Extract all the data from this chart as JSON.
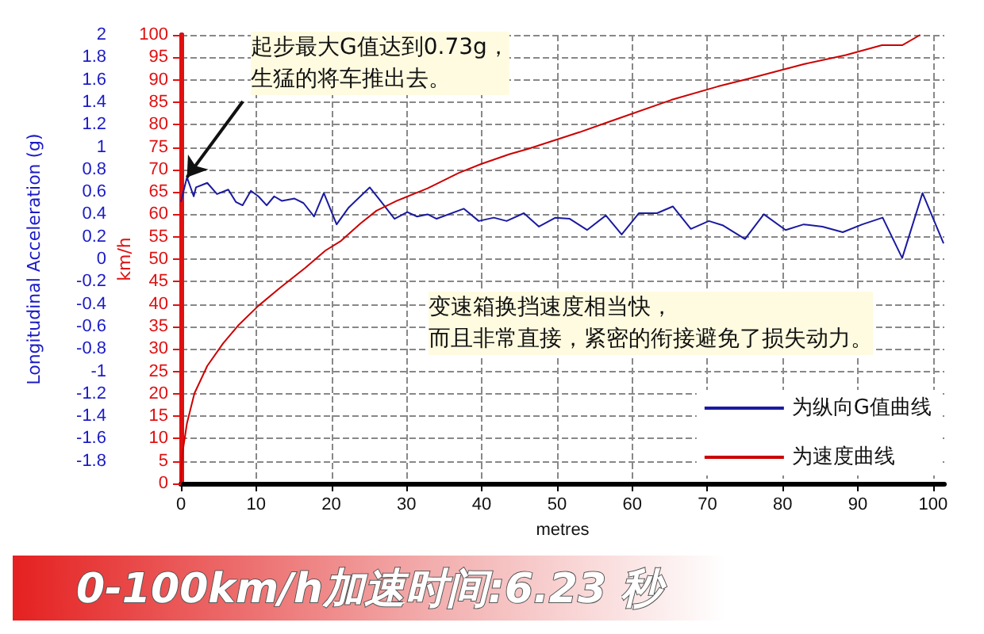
{
  "chart_data": {
    "type": "line",
    "title": "0-100km/h加速时间:6.23 秒",
    "xlabel": "metres",
    "ylabel": "Longitudinal Acceleration (g)",
    "y2label": "km/h",
    "xlim": [
      0,
      101.5
    ],
    "xticks": [
      0,
      10,
      20,
      30,
      40,
      50,
      60,
      70,
      80,
      90,
      100
    ],
    "ylim": [
      -2,
      2
    ],
    "yticks": [
      -1.8,
      -1.6,
      -1.4,
      -1.2,
      -1,
      -0.8,
      -0.6,
      -0.4,
      -0.2,
      0,
      0.2,
      0.4,
      0.6,
      0.8,
      1,
      1.2,
      1.4,
      1.6,
      1.8,
      2
    ],
    "y2lim": [
      0,
      100
    ],
    "y2ticks": [
      0,
      5,
      10,
      15,
      20,
      25,
      30,
      35,
      40,
      45,
      50,
      55,
      60,
      65,
      70,
      75,
      80,
      85,
      90,
      95,
      100
    ],
    "grid": true,
    "legend": "bottom right",
    "marker": "none",
    "line_style": "solid",
    "annotations": [
      {
        "text": "起步最大G值达到0.73g，生猛的将车推出去。",
        "x": 0.8,
        "y": 0.73
      },
      "变速箱换挡速度相当快，而且非常直接，紧密的衔接避免了损失动力。"
    ],
    "series": [
      {
        "name": "为纵向G值曲线",
        "color": "#1a1aa0",
        "x": [
          0,
          0.8,
          1.7,
          2.0,
          3.5,
          4.8,
          6.3,
          7.3,
          8.2,
          9.3,
          10.3,
          11.4,
          12.4,
          13.4,
          15.1,
          16.3,
          17.7,
          19.0,
          20.7,
          22.3,
          25.1,
          26.3,
          28.4,
          30.1,
          31.4,
          32.8,
          34.0,
          37.6,
          39.6,
          41.6,
          43.3,
          45.6,
          47.6,
          49.8,
          51.7,
          54.0,
          56.5,
          58.6,
          60.9,
          63.3,
          65.4,
          67.8,
          70.2,
          72.1,
          75.0,
          77.5,
          80.4,
          82.8,
          85.3,
          88.0,
          90.6,
          93.3,
          95.9,
          98.6,
          101.4
        ],
        "values": [
          0.51,
          0.73,
          0.56,
          0.64,
          0.68,
          0.58,
          0.62,
          0.51,
          0.48,
          0.61,
          0.56,
          0.48,
          0.56,
          0.52,
          0.54,
          0.5,
          0.38,
          0.59,
          0.31,
          0.46,
          0.64,
          0.54,
          0.36,
          0.42,
          0.38,
          0.4,
          0.36,
          0.45,
          0.34,
          0.37,
          0.34,
          0.41,
          0.29,
          0.37,
          0.36,
          0.26,
          0.39,
          0.22,
          0.41,
          0.41,
          0.47,
          0.27,
          0.34,
          0.3,
          0.18,
          0.4,
          0.26,
          0.31,
          0.29,
          0.24,
          0.31,
          0.37,
          0.01,
          0.59,
          0.14
        ]
      },
      {
        "name": "为速度曲线",
        "color": "#cc0000",
        "axis": "y2",
        "x": [
          0,
          0.2,
          0.8,
          1.8,
          3.5,
          5.6,
          7.6,
          10.3,
          13.1,
          16.5,
          19.2,
          21.3,
          23.9,
          26.0,
          28.7,
          32.8,
          36.9,
          39.9,
          43.7,
          46.2,
          53.0,
          58.4,
          65.2,
          71.4,
          75.4,
          82.9,
          88.4,
          93.2,
          95.9,
          98.3
        ],
        "values": [
          0,
          6.7,
          13.4,
          20.1,
          26.2,
          31.2,
          35.2,
          39.6,
          43.5,
          48,
          51.9,
          54.1,
          58,
          60.8,
          63,
          65.8,
          69.2,
          71.2,
          73.4,
          74.6,
          78.3,
          81.5,
          85.5,
          88.5,
          90.2,
          93.5,
          95.5,
          97.7,
          97.7,
          100
        ]
      }
    ]
  }
}
